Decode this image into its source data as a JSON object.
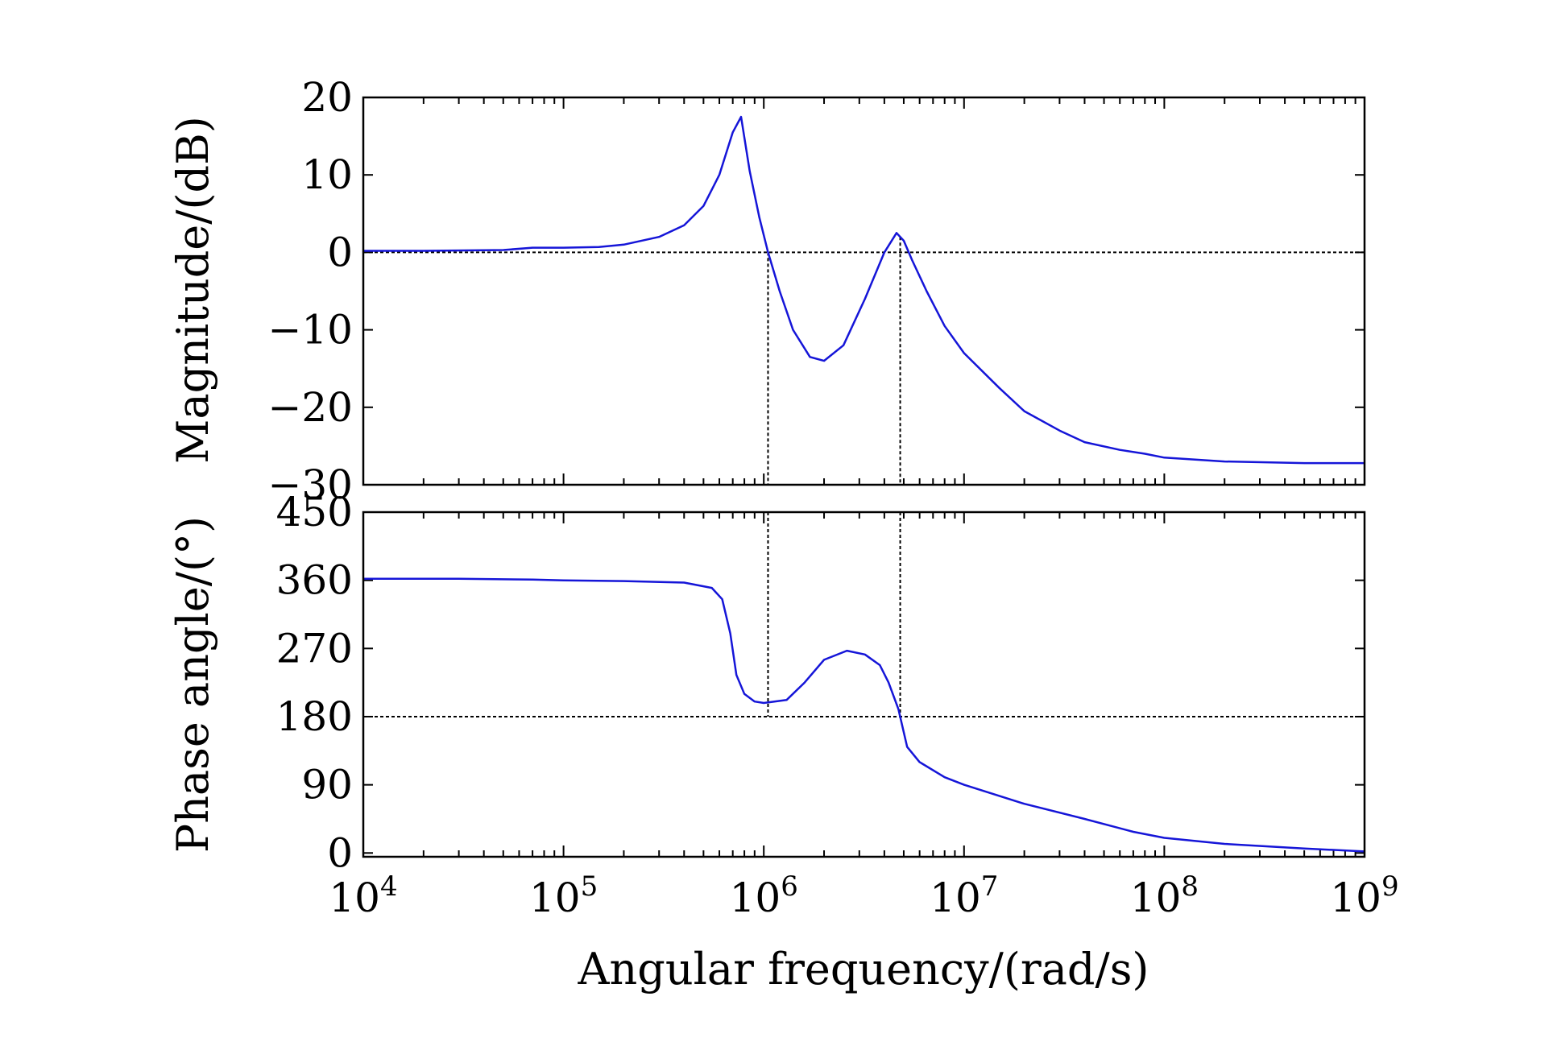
{
  "chart_data": [
    {
      "type": "line",
      "panel": "top",
      "ylabel": "Magnitude/(dB)",
      "xscale": "log",
      "xlim": [
        10000,
        1000000000
      ],
      "ylim": [
        -30,
        20
      ],
      "yticks": [
        {
          "value": 20,
          "label": "20"
        },
        {
          "value": 10,
          "label": "10"
        },
        {
          "value": 0,
          "label": "0"
        },
        {
          "value": -10,
          "label": "−10"
        },
        {
          "value": -20,
          "label": "−20"
        },
        {
          "value": -30,
          "label": "−30"
        }
      ],
      "reference_y": 0,
      "reference_x": [
        1050000,
        4800000
      ],
      "series": [
        {
          "name": "magnitude",
          "color": "#1515d8",
          "x": [
            10000,
            20000,
            50000,
            70000,
            100000,
            150000,
            200000,
            300000,
            400000,
            500000,
            600000,
            700000,
            770000,
            850000,
            950000,
            1050000,
            1200000,
            1400000,
            1700000,
            2000000,
            2500000,
            3200000,
            4000000,
            4600000,
            5000000,
            5500000,
            6500000,
            8000000,
            10000000,
            15000000,
            20000000,
            30000000,
            40000000,
            60000000,
            80000000,
            100000000,
            200000000,
            500000000,
            1000000000
          ],
          "values": [
            0.2,
            0.2,
            0.3,
            0.6,
            0.6,
            0.7,
            1.0,
            2.0,
            3.5,
            6.0,
            10.0,
            15.5,
            17.5,
            10.5,
            4.5,
            0.0,
            -5.0,
            -10.0,
            -13.5,
            -14.0,
            -12.0,
            -6.0,
            0.0,
            2.5,
            1.5,
            -1.0,
            -5.0,
            -9.5,
            -13.0,
            -17.5,
            -20.5,
            -23.0,
            -24.5,
            -25.5,
            -26.0,
            -26.5,
            -27.0,
            -27.2,
            -27.2
          ]
        }
      ]
    },
    {
      "type": "line",
      "panel": "bottom",
      "ylabel": "Phase angle/(°)",
      "xlabel": "Angular frequency/(rad/s)",
      "xscale": "log",
      "xlim": [
        10000,
        1000000000
      ],
      "ylim": [
        -5,
        450
      ],
      "yticks": [
        {
          "value": 450,
          "label": "450"
        },
        {
          "value": 360,
          "label": "360"
        },
        {
          "value": 270,
          "label": "270"
        },
        {
          "value": 180,
          "label": "180"
        },
        {
          "value": 90,
          "label": "90"
        },
        {
          "value": 0,
          "label": "0"
        }
      ],
      "xticks": [
        {
          "value": 10000,
          "base": "10",
          "exp": "4"
        },
        {
          "value": 100000,
          "base": "10",
          "exp": "5"
        },
        {
          "value": 1000000,
          "base": "10",
          "exp": "6"
        },
        {
          "value": 10000000,
          "base": "10",
          "exp": "7"
        },
        {
          "value": 100000000,
          "base": "10",
          "exp": "8"
        },
        {
          "value": 1000000000,
          "base": "10",
          "exp": "9"
        }
      ],
      "reference_y": 180,
      "reference_x": [
        1050000,
        4800000
      ],
      "series": [
        {
          "name": "phase",
          "color": "#1515d8",
          "x": [
            10000,
            30000,
            70000,
            100000,
            200000,
            400000,
            550000,
            620000,
            680000,
            730000,
            800000,
            900000,
            1000000,
            1300000,
            1600000,
            2000000,
            2600000,
            3200000,
            3800000,
            4200000,
            4700000,
            5200000,
            6000000,
            8000000,
            10000000,
            20000000,
            40000000,
            70000000,
            100000000,
            200000000,
            500000000,
            1000000000
          ],
          "values": [
            362,
            362,
            361,
            360,
            359,
            357,
            350,
            335,
            290,
            235,
            210,
            200,
            198,
            202,
            225,
            255,
            267,
            262,
            248,
            225,
            190,
            140,
            120,
            100,
            90,
            65,
            45,
            28,
            20,
            12,
            6,
            2
          ]
        }
      ]
    }
  ]
}
